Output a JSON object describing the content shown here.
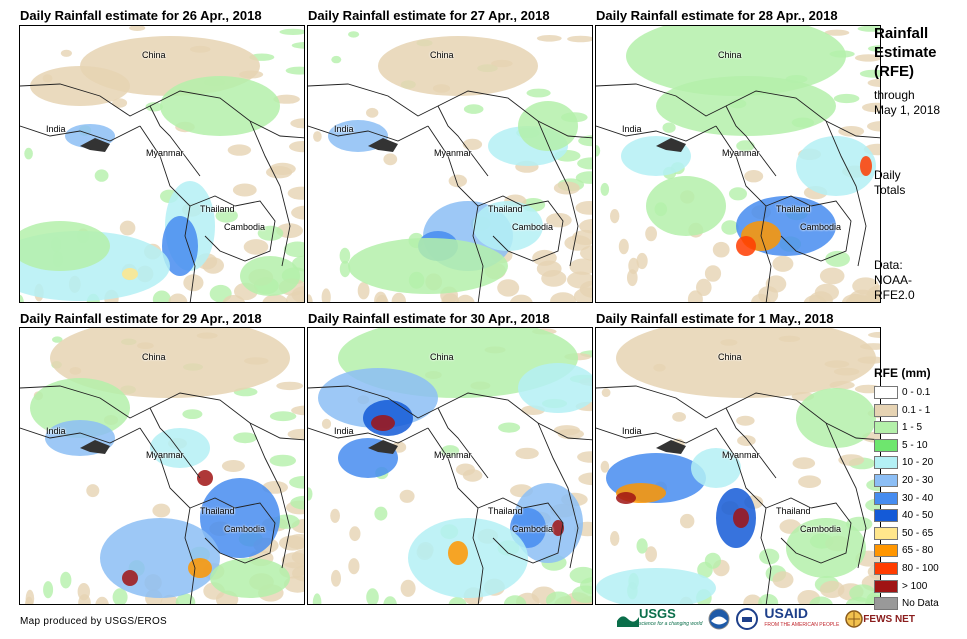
{
  "panels": [
    {
      "title": "Daily Rainfall estimate for 26 Apr., 2018"
    },
    {
      "title": "Daily Rainfall estimate for 27 Apr., 2018"
    },
    {
      "title": "Daily Rainfall estimate for 28 Apr., 2018"
    },
    {
      "title": "Daily Rainfall estimate for 29 Apr., 2018"
    },
    {
      "title": "Daily Rainfall estimate for 30 Apr., 2018"
    },
    {
      "title": "Daily Rainfall estimate for 1 May., 2018"
    }
  ],
  "labels": {
    "china": "China",
    "india": "India",
    "myanmar": "Myanmar",
    "thailand": "Thailand",
    "cambodia": "Cambodia"
  },
  "side": {
    "title_line1": "Rainfall",
    "title_line2": "Estimate",
    "title_line3": "(RFE)",
    "through_line1": "through",
    "through_line2": "May 1, 2018",
    "daily_line1": "Daily",
    "daily_line2": "Totals",
    "data_line1": "Data:",
    "data_line2": "NOAA-",
    "data_line3": "RFE2.0"
  },
  "legend": {
    "title": "RFE (mm)",
    "items": [
      {
        "label": "0 - 0.1",
        "color": "#ffffff"
      },
      {
        "label": "0.1 - 1",
        "color": "#e6d3b3"
      },
      {
        "label": "1 - 5",
        "color": "#b4f0aa"
      },
      {
        "label": "5 - 10",
        "color": "#6ee66e"
      },
      {
        "label": "10 - 20",
        "color": "#b4f0f5"
      },
      {
        "label": "20 - 30",
        "color": "#8cbef5"
      },
      {
        "label": "30 - 40",
        "color": "#468cf0"
      },
      {
        "label": "40 - 50",
        "color": "#145ad7"
      },
      {
        "label": "50 - 65",
        "color": "#ffe68c"
      },
      {
        "label": "65 - 80",
        "color": "#ff9600"
      },
      {
        "label": "80 - 100",
        "color": "#ff3c00"
      },
      {
        "label": "> 100",
        "color": "#a01414"
      },
      {
        "label": "No Data",
        "color": "#999999"
      }
    ]
  },
  "credit": "Map produced by USGS/EROS",
  "logos": {
    "usgs": "USGS",
    "usgs_tag": "science for a changing world",
    "usaid": "USAID",
    "usaid_tag": "FROM THE AMERICAN PEOPLE",
    "fewsnet": "FEWS NET"
  }
}
